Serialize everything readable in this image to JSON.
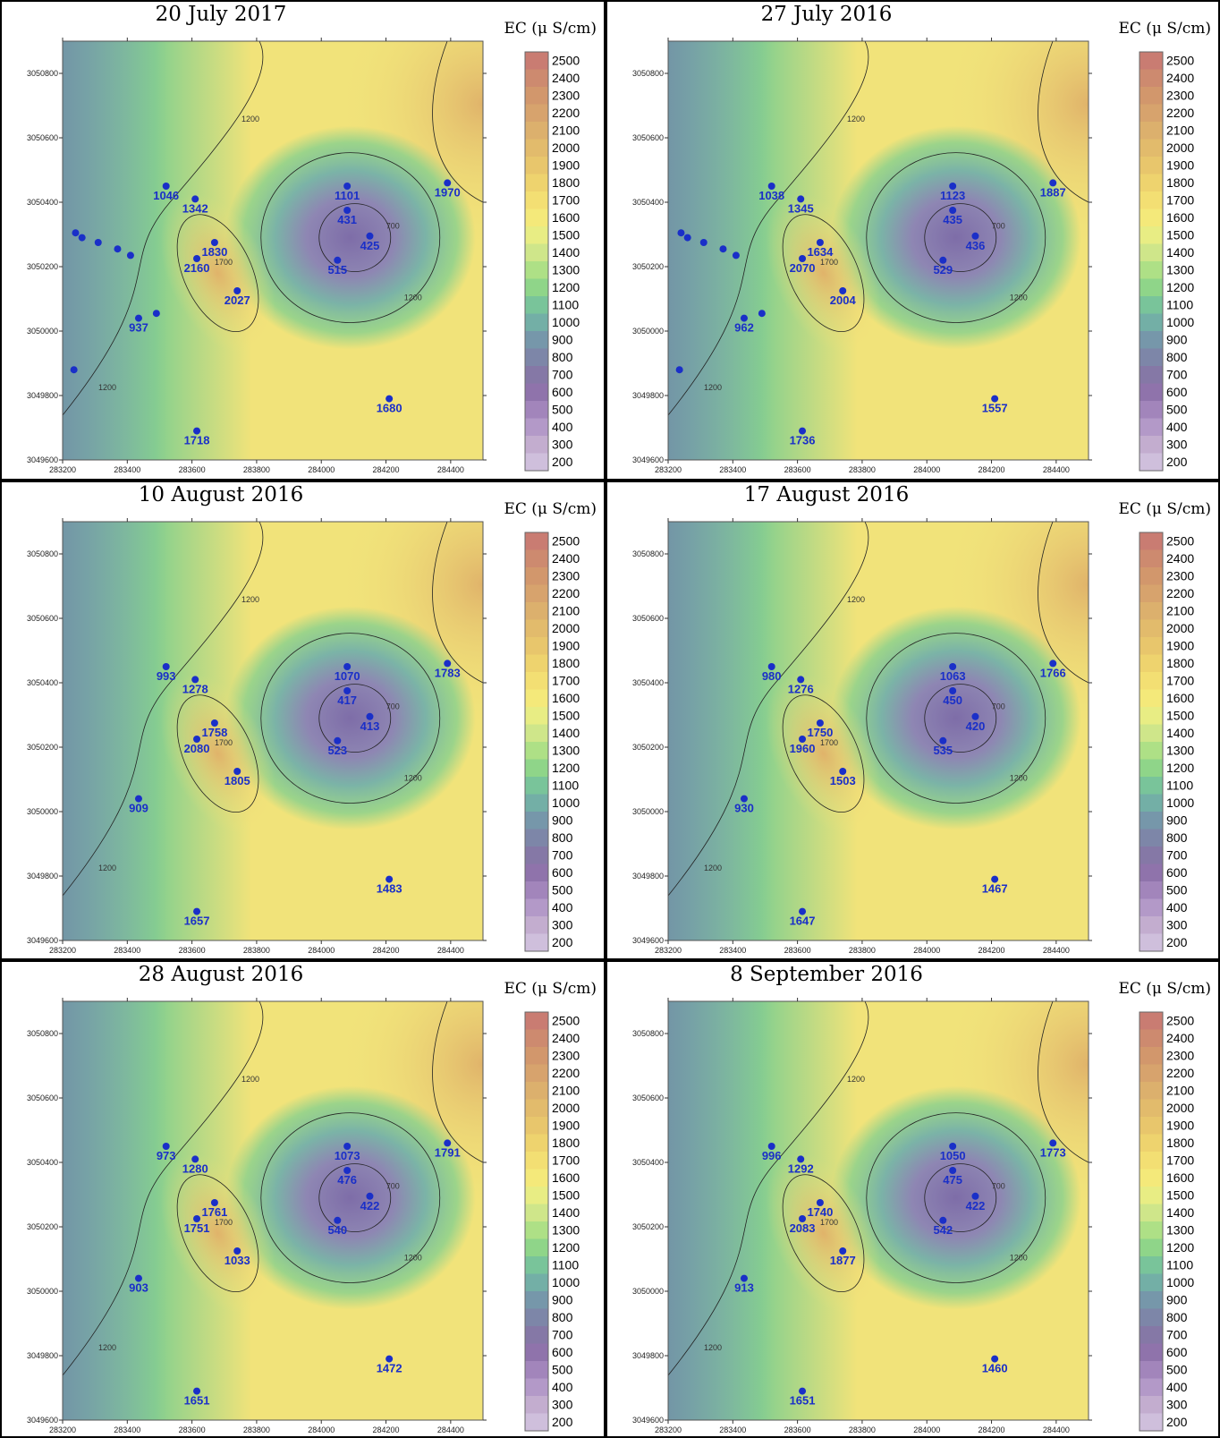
{
  "legend_title": "EC (μ S/cm)",
  "colorbar_ticks": [
    "2500",
    "2400",
    "2300",
    "2200",
    "2100",
    "2000",
    "1900",
    "1800",
    "1700",
    "1600",
    "1500",
    "1400",
    "1300",
    "1200",
    "1100",
    "1000",
    "900",
    "800",
    "700",
    "600",
    "500",
    "400",
    "300",
    "200"
  ],
  "colorbar_colors": [
    "#c97c72",
    "#cd8a6f",
    "#d2976c",
    "#d7a36d",
    "#dcb06d",
    "#e2bb6c",
    "#e8c66c",
    "#eed36e",
    "#f3df73",
    "#f4e97a",
    "#e8ed84",
    "#cfe68a",
    "#aee086",
    "#8fd589",
    "#79c49a",
    "#73afa6",
    "#7697aa",
    "#7d86a8",
    "#8578a6",
    "#8f73ab",
    "#a285bb",
    "#b399c8",
    "#c3adcf",
    "#cfbfdc"
  ],
  "contour_colors": {
    "low": "#7e6da8",
    "mid": "#86d08e",
    "mid2": "#f1e37a",
    "high": "#e0b36a",
    "outer": "#7aaea9"
  },
  "axes": {
    "x_ticks": [
      "283200",
      "283400",
      "283600",
      "283800",
      "284000",
      "284200",
      "284400"
    ],
    "y_ticks": [
      "3050800",
      "3050600",
      "3050400",
      "3050200",
      "3050000",
      "3049800",
      "3049600"
    ]
  },
  "chart_data": [
    {
      "type": "heatmap",
      "title": "20 July 2017",
      "unit": "EC (μ S/cm)",
      "color_scale": [
        200,
        2500
      ],
      "wells": [
        {
          "label": "1046",
          "x": 283520,
          "y": 3050450
        },
        {
          "label": "1342",
          "x": 283610,
          "y": 3050410
        },
        {
          "label": "1101",
          "x": 284080,
          "y": 3050450
        },
        {
          "label": "1970",
          "x": 284390,
          "y": 3050460
        },
        {
          "label": "431",
          "x": 284080,
          "y": 3050375
        },
        {
          "label": "425",
          "x": 284150,
          "y": 3050295
        },
        {
          "label": "1830",
          "x": 283670,
          "y": 3050275
        },
        {
          "label": "2160",
          "x": 283615,
          "y": 3050225
        },
        {
          "label": "515",
          "x": 284050,
          "y": 3050220
        },
        {
          "label": "2027",
          "x": 283740,
          "y": 3050125
        },
        {
          "label": "937",
          "x": 283435,
          "y": 3050040
        },
        {
          "label": "1680",
          "x": 284210,
          "y": 3049790
        },
        {
          "label": "1718",
          "x": 283615,
          "y": 3049690
        }
      ],
      "extra_points": [
        {
          "x": 283240,
          "y": 3050305
        },
        {
          "x": 283260,
          "y": 3050290
        },
        {
          "x": 283310,
          "y": 3050275
        },
        {
          "x": 283370,
          "y": 3050255
        },
        {
          "x": 283410,
          "y": 3050235
        },
        {
          "x": 283490,
          "y": 3050055
        },
        {
          "x": 283235,
          "y": 3049880
        }
      ],
      "contour_labels": [
        "1200",
        "1700",
        "700"
      ]
    },
    {
      "type": "heatmap",
      "title": "27 July 2016",
      "unit": "EC (μ S/cm)",
      "color_scale": [
        200,
        2500
      ],
      "wells": [
        {
          "label": "1038",
          "x": 283520,
          "y": 3050450
        },
        {
          "label": "1345",
          "x": 283610,
          "y": 3050410
        },
        {
          "label": "1123",
          "x": 284080,
          "y": 3050450
        },
        {
          "label": "1887",
          "x": 284390,
          "y": 3050460
        },
        {
          "label": "435",
          "x": 284080,
          "y": 3050375
        },
        {
          "label": "436",
          "x": 284150,
          "y": 3050295
        },
        {
          "label": "1634",
          "x": 283670,
          "y": 3050275
        },
        {
          "label": "2070",
          "x": 283615,
          "y": 3050225
        },
        {
          "label": "529",
          "x": 284050,
          "y": 3050220
        },
        {
          "label": "2004",
          "x": 283740,
          "y": 3050125
        },
        {
          "label": "962",
          "x": 283435,
          "y": 3050040
        },
        {
          "label": "1557",
          "x": 284210,
          "y": 3049790
        },
        {
          "label": "1736",
          "x": 283615,
          "y": 3049690
        }
      ],
      "extra_points": [
        {
          "x": 283240,
          "y": 3050305
        },
        {
          "x": 283260,
          "y": 3050290
        },
        {
          "x": 283310,
          "y": 3050275
        },
        {
          "x": 283370,
          "y": 3050255
        },
        {
          "x": 283410,
          "y": 3050235
        },
        {
          "x": 283490,
          "y": 3050055
        },
        {
          "x": 283235,
          "y": 3049880
        }
      ],
      "contour_labels": [
        "1200",
        "1700",
        "700"
      ]
    },
    {
      "type": "heatmap",
      "title": "10 August 2016",
      "unit": "EC (μ S/cm)",
      "color_scale": [
        200,
        2500
      ],
      "wells": [
        {
          "label": "993",
          "x": 283520,
          "y": 3050450
        },
        {
          "label": "1278",
          "x": 283610,
          "y": 3050410
        },
        {
          "label": "1070",
          "x": 284080,
          "y": 3050450
        },
        {
          "label": "1783",
          "x": 284390,
          "y": 3050460
        },
        {
          "label": "417",
          "x": 284080,
          "y": 3050375
        },
        {
          "label": "413",
          "x": 284150,
          "y": 3050295
        },
        {
          "label": "1758",
          "x": 283670,
          "y": 3050275
        },
        {
          "label": "2080",
          "x": 283615,
          "y": 3050225
        },
        {
          "label": "523",
          "x": 284050,
          "y": 3050220
        },
        {
          "label": "1805",
          "x": 283740,
          "y": 3050125
        },
        {
          "label": "909",
          "x": 283435,
          "y": 3050040
        },
        {
          "label": "1483",
          "x": 284210,
          "y": 3049790
        },
        {
          "label": "1657",
          "x": 283615,
          "y": 3049690
        }
      ],
      "extra_points": [],
      "contour_labels": [
        "1200",
        "1700",
        "700"
      ]
    },
    {
      "type": "heatmap",
      "title": "17 August 2016",
      "unit": "EC (μ S/cm)",
      "color_scale": [
        200,
        2500
      ],
      "wells": [
        {
          "label": "980",
          "x": 283520,
          "y": 3050450
        },
        {
          "label": "1276",
          "x": 283610,
          "y": 3050410
        },
        {
          "label": "1063",
          "x": 284080,
          "y": 3050450
        },
        {
          "label": "1766",
          "x": 284390,
          "y": 3050460
        },
        {
          "label": "450",
          "x": 284080,
          "y": 3050375
        },
        {
          "label": "420",
          "x": 284150,
          "y": 3050295
        },
        {
          "label": "1750",
          "x": 283670,
          "y": 3050275
        },
        {
          "label": "1960",
          "x": 283615,
          "y": 3050225
        },
        {
          "label": "535",
          "x": 284050,
          "y": 3050220
        },
        {
          "label": "1503",
          "x": 283740,
          "y": 3050125
        },
        {
          "label": "930",
          "x": 283435,
          "y": 3050040
        },
        {
          "label": "1467",
          "x": 284210,
          "y": 3049790
        },
        {
          "label": "1647",
          "x": 283615,
          "y": 3049690
        }
      ],
      "extra_points": [],
      "contour_labels": [
        "1200",
        "1700",
        "700"
      ]
    },
    {
      "type": "heatmap",
      "title": "28 August 2016",
      "unit": "EC (μ S/cm)",
      "color_scale": [
        200,
        2500
      ],
      "wells": [
        {
          "label": "973",
          "x": 283520,
          "y": 3050450
        },
        {
          "label": "1280",
          "x": 283610,
          "y": 3050410
        },
        {
          "label": "1073",
          "x": 284080,
          "y": 3050450
        },
        {
          "label": "1791",
          "x": 284390,
          "y": 3050460
        },
        {
          "label": "476",
          "x": 284080,
          "y": 3050375
        },
        {
          "label": "422",
          "x": 284150,
          "y": 3050295
        },
        {
          "label": "1761",
          "x": 283670,
          "y": 3050275
        },
        {
          "label": "1751",
          "x": 283615,
          "y": 3050225
        },
        {
          "label": "540",
          "x": 284050,
          "y": 3050220
        },
        {
          "label": "1033",
          "x": 283740,
          "y": 3050125
        },
        {
          "label": "903",
          "x": 283435,
          "y": 3050040
        },
        {
          "label": "1472",
          "x": 284210,
          "y": 3049790
        },
        {
          "label": "1651",
          "x": 283615,
          "y": 3049690
        }
      ],
      "extra_points": [],
      "contour_labels": [
        "1200",
        "1700",
        "700"
      ]
    },
    {
      "type": "heatmap",
      "title": "8 September 2016",
      "unit": "EC (μ S/cm)",
      "color_scale": [
        200,
        2500
      ],
      "wells": [
        {
          "label": "996",
          "x": 283520,
          "y": 3050450
        },
        {
          "label": "1292",
          "x": 283610,
          "y": 3050410
        },
        {
          "label": "1050",
          "x": 284080,
          "y": 3050450
        },
        {
          "label": "1773",
          "x": 284390,
          "y": 3050460
        },
        {
          "label": "475",
          "x": 284080,
          "y": 3050375
        },
        {
          "label": "422",
          "x": 284150,
          "y": 3050295
        },
        {
          "label": "1740",
          "x": 283670,
          "y": 3050275
        },
        {
          "label": "2083",
          "x": 283615,
          "y": 3050225
        },
        {
          "label": "542",
          "x": 284050,
          "y": 3050220
        },
        {
          "label": "1877",
          "x": 283740,
          "y": 3050125
        },
        {
          "label": "913",
          "x": 283435,
          "y": 3050040
        },
        {
          "label": "1460",
          "x": 284210,
          "y": 3049790
        },
        {
          "label": "1651",
          "x": 283615,
          "y": 3049690
        }
      ],
      "extra_points": [],
      "contour_labels": [
        "1200",
        "1700",
        "700"
      ]
    }
  ]
}
